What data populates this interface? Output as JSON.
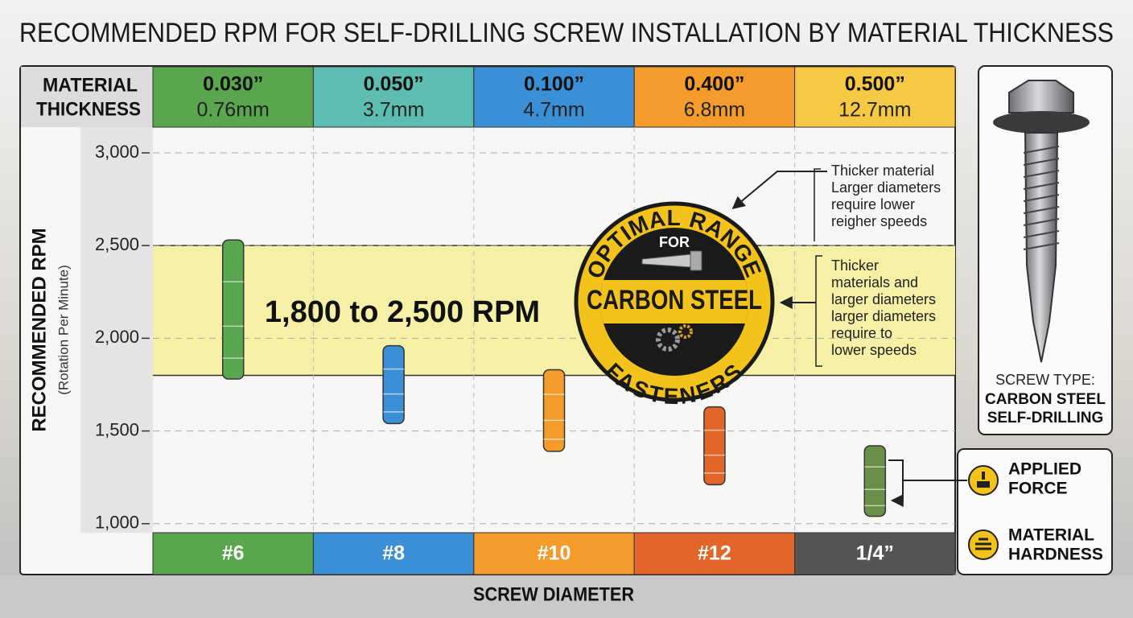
{
  "chart_data": {
    "type": "range",
    "title": "RECOMMENDED RPM FOR SELF-DRILLING SCREW INSTALLATION BY MATERIAL THICKNESS",
    "x_label": "SCREW DIAMETER",
    "y_label": "RECOMMENDED RPM",
    "y_sublabel": "(Rotation Per Minute)",
    "thickness_header": [
      "MATERIAL",
      "THICKNESS"
    ],
    "thickness": [
      {
        "inch": "0.030”",
        "mm": "0.76mm",
        "color": "#5aa64e"
      },
      {
        "inch": "0.050”",
        "mm": "3.7mm",
        "color": "#5cbdb0"
      },
      {
        "inch": "0.100”",
        "mm": "4.7mm",
        "color": "#3b8fd6"
      },
      {
        "inch": "0.400”",
        "mm": "6.8mm",
        "color": "#f39c2c"
      },
      {
        "inch": "0.500”",
        "mm": "12.7mm",
        "color": "#f6c945"
      }
    ],
    "categories": [
      "#6",
      "#8",
      "#10",
      "#12",
      "1/4”"
    ],
    "category_colors": [
      "#5aa64e",
      "#3b8fd6",
      "#f39c2c",
      "#e2662a",
      "#545454"
    ],
    "low": [
      1780,
      1540,
      1390,
      1210,
      1040
    ],
    "high": [
      2530,
      1960,
      1830,
      1630,
      1420
    ],
    "colors": [
      "#5aa64e",
      "#3b8fd6",
      "#f39c2c",
      "#e2662a",
      "#6a8f49"
    ],
    "band": {
      "low": 1800,
      "high": 2500,
      "label": "1,800 to 2,500 RPM",
      "color": "#f6f0a6"
    },
    "ylim": [
      960,
      3130
    ],
    "yticks": [
      {
        "value": 1000,
        "label": "1,000"
      },
      {
        "value": 1500,
        "label": "1,500"
      },
      {
        "value": 2000,
        "label": "2,000"
      },
      {
        "value": 2500,
        "label": "2,500"
      },
      {
        "value": 3000,
        "label": "3,000"
      }
    ],
    "grid": true,
    "badge": {
      "top": "OPTIMAL RANGE",
      "middle": "FOR",
      "main": "CARBON STEEL",
      "bottom": "FASTENERS"
    },
    "annotations": [
      [
        "Thicker material",
        "Larger diameters",
        "require lower",
        "reigher speeds"
      ],
      [
        "Thicker",
        "materials and",
        "larger diameters",
        "larger diameters",
        "require to",
        "lower speeds"
      ]
    ],
    "screw_type": [
      "SCREW TYPE:",
      "CARBON STEEL",
      "SELF-DRILLING"
    ],
    "factors": [
      [
        "APPLIED",
        "FORCE"
      ],
      [
        "MATERIAL",
        "HARDNESS"
      ]
    ]
  }
}
